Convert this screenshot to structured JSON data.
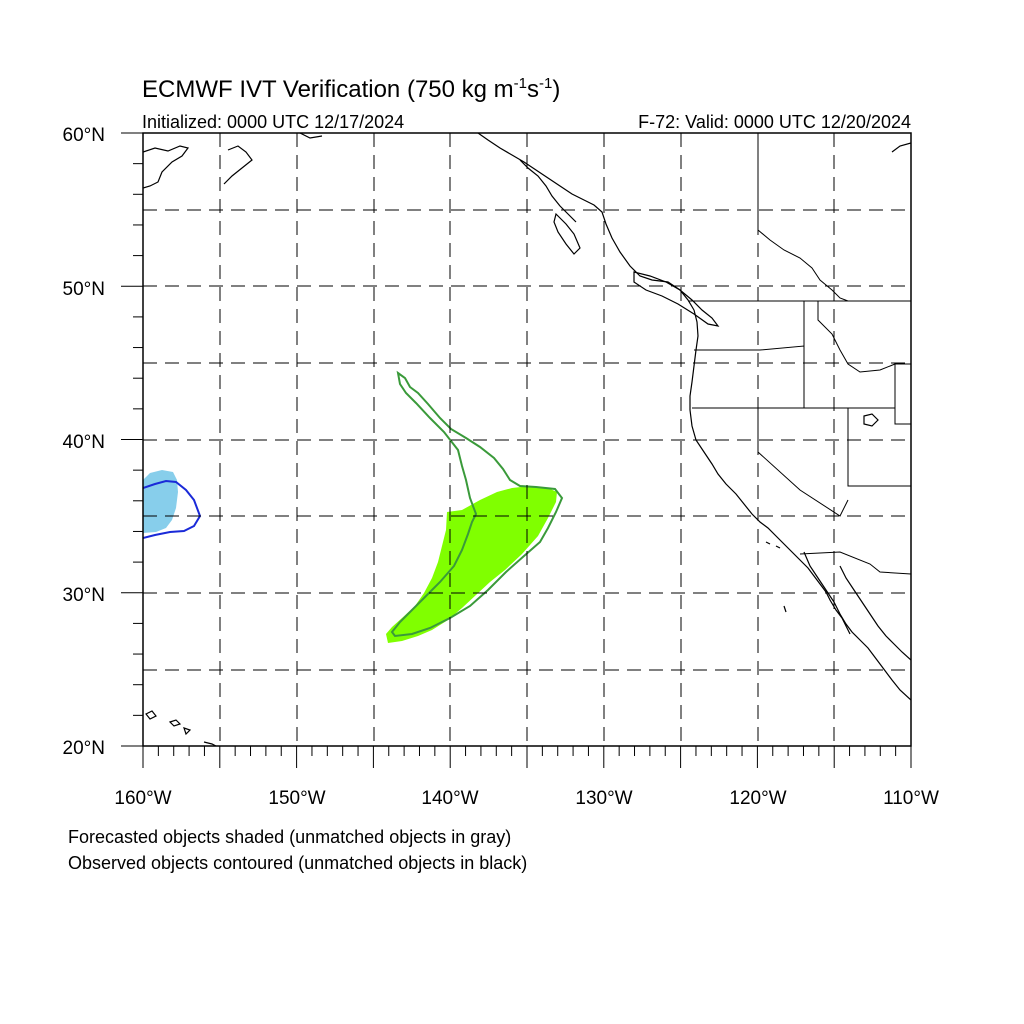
{
  "title": {
    "main": "ECMWF IVT Verification (750 kg m",
    "exp1": "-1",
    "mid": "s",
    "exp2": "-1",
    "close": ")"
  },
  "initialized": "Initialized: 0000 UTC 12/17/2024",
  "valid": "F-72: Valid: 0000 UTC 12/20/2024",
  "lat_labels": [
    "60°N",
    "50°N",
    "40°N",
    "30°N",
    "20°N"
  ],
  "lon_labels": [
    "160°W",
    "150°W",
    "140°W",
    "130°W",
    "120°W",
    "110°W"
  ],
  "notes": [
    "Forecasted objects shaded (unmatched objects in gray)",
    "Observed objects contoured (unmatched objects in black)"
  ],
  "map": {
    "lon_range": [
      -160,
      -110
    ],
    "lat_range": [
      20,
      60
    ],
    "gridline_interval_deg": 5,
    "gridline_style": "dashed"
  },
  "objects": [
    {
      "name": "forecast-object-1",
      "kind": "forecast-shaded",
      "color": "#80ff00"
    },
    {
      "name": "observed-object-1",
      "kind": "observed-contour",
      "color": "#3a9a3a"
    },
    {
      "name": "forecast-object-2",
      "kind": "forecast-shaded",
      "color": "#87ceeb"
    },
    {
      "name": "observed-object-2",
      "kind": "observed-contour",
      "color": "#1a2ad8"
    }
  ]
}
